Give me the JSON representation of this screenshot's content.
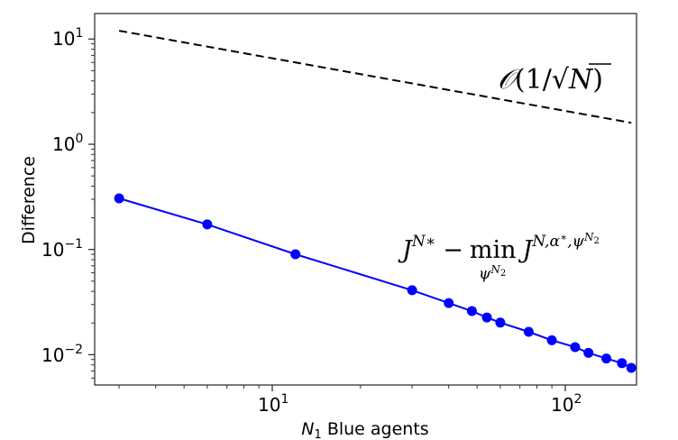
{
  "chart_data": {
    "type": "line",
    "title": "",
    "xlabel": "N_1 Blue agents",
    "xlabel_parts": {
      "var": "N",
      "sub": "1",
      "rest": " Blue agents"
    },
    "ylabel": "Difference",
    "xscale": "log",
    "yscale": "log",
    "xlim": [
      2.5,
      190
    ],
    "ylim": [
      0.0055,
      16
    ],
    "grid": false,
    "legend": null,
    "x_ticks": [
      {
        "value": 10,
        "base": "10",
        "exp": "1"
      },
      {
        "value": 100,
        "base": "10",
        "exp": "2"
      }
    ],
    "y_ticks": [
      {
        "value": 10,
        "base": "10",
        "exp": "1"
      },
      {
        "value": 1,
        "base": "10",
        "exp": "0"
      },
      {
        "value": 0.1,
        "base": "10",
        "exp": "−1"
      },
      {
        "value": 0.01,
        "base": "10",
        "exp": "−2"
      }
    ],
    "series": [
      {
        "name": "J^{N*} - min_{psi^{N2}} J^{N,alpha*,psi^{N2}}",
        "style": "solid line with circle markers",
        "color": "#0000ff",
        "x": [
          3,
          6,
          12,
          30,
          40,
          48,
          54,
          60,
          75,
          90,
          108,
          120,
          138,
          156,
          168
        ],
        "values": [
          0.306,
          0.173,
          0.09,
          0.041,
          0.031,
          0.026,
          0.0226,
          0.0202,
          0.0165,
          0.0137,
          0.0118,
          0.0104,
          0.0092,
          0.0083,
          0.0075
        ]
      },
      {
        "name": "O(1/sqrt(N))",
        "style": "dashed line",
        "color": "#000000",
        "x": [
          3,
          168
        ],
        "values": [
          12.0,
          1.6
        ]
      }
    ],
    "annotations": [
      {
        "text": "O(1/√N)",
        "near": "dashed reference line, upper right"
      },
      {
        "text": "J^{N*} − min_{ψ^{N2}} J^{N,α*,ψ^{N2}}",
        "near": "blue series, middle right"
      }
    ]
  },
  "labels": {
    "ylabel": "Difference",
    "xlabel_var": "N",
    "xlabel_sub": "1",
    "xlabel_rest": " Blue agents",
    "ann_ref_O": "𝒪",
    "ann_ref_open": "(1/",
    "ann_ref_sqrt": "√",
    "ann_ref_N": "N",
    "ann_ref_close": ")",
    "ann_main_J": "J",
    "ann_main_sup1": "N∗",
    "ann_main_minus": "−",
    "ann_main_min": "min",
    "ann_main_sub_psi": "ψ",
    "ann_main_sub_sup": "N",
    "ann_main_sub_sup_sub": "2",
    "ann_main_J2": "J",
    "ann_main_sup2": "N,α",
    "ann_main_sup2_star": "∗",
    "ann_main_sup2_psi": ",ψ",
    "ann_main_sup2_N": "N",
    "ann_main_sup2_2": "2"
  },
  "colors": {
    "series_blue": "#0000ff",
    "reference_line": "#000000",
    "axes": "#333333"
  }
}
